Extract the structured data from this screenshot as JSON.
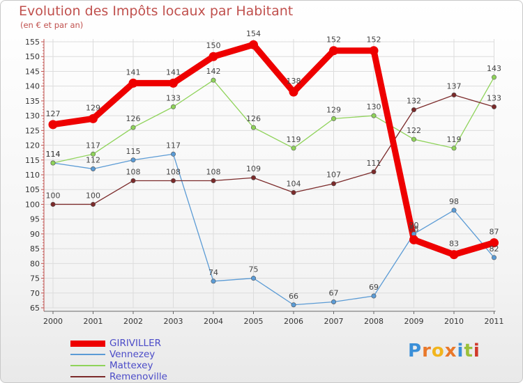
{
  "header": {
    "title": "Evolution des Impôts locaux par Habitant",
    "subtitle": "(en € et par an)"
  },
  "brand": {
    "text": "Proxiti",
    "letter_colors": [
      "#3a8fd8",
      "#e9782a",
      "#f2b51d",
      "#e9782a",
      "#3a8fd8",
      "#9bc03a",
      "#d0392b"
    ]
  },
  "chart_data": {
    "type": "line",
    "title": "Evolution des Impôts locaux par Habitant",
    "subtitle": "(en € et par an)",
    "xlabel": "",
    "ylabel": "",
    "ylim": [
      65,
      155
    ],
    "yticks": [
      65,
      70,
      75,
      80,
      85,
      90,
      95,
      100,
      105,
      110,
      115,
      120,
      125,
      130,
      135,
      140,
      145,
      150,
      155
    ],
    "grid": true,
    "legend": "bottom-left",
    "categories": [
      "2000",
      "2001",
      "2002",
      "2003",
      "2004",
      "2005",
      "2006",
      "2007",
      "2008",
      "2009",
      "2010",
      "2011"
    ],
    "series": [
      {
        "name": "GIRIVILLER",
        "color": "#ee0000",
        "emphasis": true,
        "values": [
          127,
          129,
          141,
          141,
          150,
          154,
          138,
          152,
          152,
          88,
          83,
          87
        ],
        "labels": [
          "127",
          "129",
          "141",
          "141",
          "150",
          "154",
          "138",
          "152",
          "152",
          "88",
          "83",
          "87"
        ]
      },
      {
        "name": "Vennezey",
        "color": "#5b9bd5",
        "emphasis": false,
        "values": [
          114,
          112,
          115,
          117,
          74,
          75,
          66,
          67,
          69,
          90,
          98,
          82
        ],
        "labels": [
          "114",
          "112",
          "115",
          "117",
          "74",
          "75",
          "66",
          "67",
          "69",
          "90",
          "98",
          "82"
        ]
      },
      {
        "name": "Mattexey",
        "color": "#8fd35a",
        "emphasis": false,
        "values": [
          114,
          117,
          126,
          133,
          142,
          126,
          119,
          129,
          130,
          122,
          119,
          143
        ],
        "labels": [
          "114",
          "117",
          "126",
          "133",
          "142",
          "126",
          "119",
          "129",
          "130",
          "122",
          "119",
          "143"
        ]
      },
      {
        "name": "Remenoville",
        "color": "#7b2a2a",
        "emphasis": false,
        "values": [
          100,
          100,
          108,
          108,
          108,
          109,
          104,
          107,
          111,
          132,
          137,
          133
        ],
        "labels": [
          "100",
          "100",
          "108",
          "108",
          "108",
          "109",
          "104",
          "107",
          "111",
          "132",
          "137",
          "133"
        ]
      }
    ]
  }
}
